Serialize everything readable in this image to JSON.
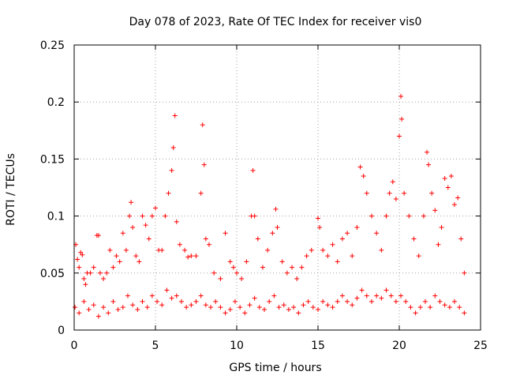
{
  "chart_data": {
    "type": "scatter",
    "title": "Day 078 of 2023, Rate Of TEC Index for receiver vis0",
    "xlabel": "GPS time / hours",
    "ylabel": "ROTI / TECUs",
    "xlim": [
      0,
      25
    ],
    "ylim": [
      0,
      0.25
    ],
    "xticks": [
      0,
      5,
      10,
      15,
      20,
      25
    ],
    "yticks": [
      0,
      0.05,
      0.1,
      0.15,
      0.2,
      0.25
    ],
    "xtick_labels": [
      "0",
      "5",
      "10",
      "15",
      "20",
      "25"
    ],
    "ytick_labels": [
      "0",
      "0.05",
      "0.1",
      "0.15",
      "0.2",
      "0.25"
    ],
    "grid": true,
    "marker": "plus",
    "series_color": "#ff0000",
    "series": [
      {
        "x": [
          0.1,
          0.2,
          0.3,
          0.4,
          0.5,
          0.6,
          0.7,
          0.8,
          1.0,
          1.2,
          1.4,
          1.5,
          1.6,
          1.8,
          2.0,
          2.2,
          2.4,
          2.6,
          2.8,
          3.0,
          3.2,
          3.4,
          3.5,
          3.6,
          3.8,
          4.0,
          4.2,
          4.4,
          4.6,
          4.8,
          5.0,
          5.2,
          5.4,
          5.6,
          5.8,
          6.0,
          6.1,
          6.2,
          6.3,
          6.5,
          6.8,
          7.0,
          7.2,
          7.5,
          7.8,
          7.9,
          8.0,
          8.1,
          8.3,
          8.6,
          9.0,
          9.3,
          9.6,
          9.8,
          10.0,
          10.3,
          10.6,
          10.9,
          11.0,
          11.1,
          11.3,
          11.6,
          11.9,
          12.2,
          12.4,
          12.5,
          12.8,
          13.1,
          13.4,
          13.7,
          14.0,
          14.3,
          14.6,
          15.0,
          15.1,
          15.3,
          15.6,
          15.9,
          16.2,
          16.5,
          16.8,
          17.1,
          17.4,
          17.6,
          17.8,
          18.0,
          18.3,
          18.6,
          18.9,
          19.2,
          19.4,
          19.6,
          19.8,
          20.0,
          20.1,
          20.15,
          20.3,
          20.6,
          20.9,
          21.2,
          21.5,
          21.7,
          21.8,
          22.0,
          22.2,
          22.4,
          22.6,
          22.8,
          23.0,
          23.2,
          23.4,
          23.6,
          23.8,
          24.0
        ],
        "y": [
          0.075,
          0.062,
          0.055,
          0.068,
          0.066,
          0.045,
          0.04,
          0.05,
          0.05,
          0.055,
          0.083,
          0.083,
          0.05,
          0.045,
          0.05,
          0.07,
          0.055,
          0.065,
          0.06,
          0.085,
          0.07,
          0.1,
          0.112,
          0.09,
          0.065,
          0.06,
          0.1,
          0.092,
          0.08,
          0.1,
          0.107,
          0.07,
          0.07,
          0.1,
          0.12,
          0.14,
          0.16,
          0.188,
          0.095,
          0.075,
          0.07,
          0.064,
          0.065,
          0.065,
          0.12,
          0.18,
          0.145,
          0.08,
          0.075,
          0.05,
          0.045,
          0.085,
          0.06,
          0.055,
          0.05,
          0.045,
          0.06,
          0.1,
          0.14,
          0.1,
          0.08,
          0.055,
          0.07,
          0.085,
          0.106,
          0.09,
          0.06,
          0.05,
          0.055,
          0.045,
          0.055,
          0.065,
          0.07,
          0.098,
          0.09,
          0.07,
          0.065,
          0.075,
          0.06,
          0.08,
          0.085,
          0.065,
          0.09,
          0.143,
          0.135,
          0.12,
          0.1,
          0.085,
          0.07,
          0.1,
          0.12,
          0.13,
          0.115,
          0.17,
          0.205,
          0.185,
          0.12,
          0.1,
          0.08,
          0.065,
          0.1,
          0.156,
          0.145,
          0.12,
          0.105,
          0.075,
          0.09,
          0.133,
          0.125,
          0.135,
          0.11,
          0.116,
          0.08,
          0.05
        ]
      },
      {
        "x": [
          0.05,
          0.3,
          0.6,
          0.9,
          1.2,
          1.5,
          1.8,
          2.1,
          2.4,
          2.7,
          3.0,
          3.3,
          3.6,
          3.9,
          4.2,
          4.5,
          4.8,
          5.1,
          5.4,
          5.7,
          6.0,
          6.3,
          6.6,
          6.9,
          7.2,
          7.5,
          7.8,
          8.1,
          8.4,
          8.7,
          9.0,
          9.3,
          9.6,
          9.9,
          10.2,
          10.5,
          10.8,
          11.1,
          11.4,
          11.7,
          12.0,
          12.3,
          12.6,
          12.9,
          13.2,
          13.5,
          13.8,
          14.1,
          14.4,
          14.7,
          15.0,
          15.3,
          15.6,
          15.9,
          16.2,
          16.5,
          16.8,
          17.1,
          17.4,
          17.7,
          18.0,
          18.3,
          18.6,
          18.9,
          19.2,
          19.5,
          19.8,
          20.1,
          20.4,
          20.7,
          21.0,
          21.3,
          21.6,
          21.9,
          22.2,
          22.5,
          22.8,
          23.1,
          23.4,
          23.7,
          24.0
        ],
        "y": [
          0.02,
          0.015,
          0.025,
          0.018,
          0.022,
          0.012,
          0.02,
          0.015,
          0.025,
          0.018,
          0.02,
          0.03,
          0.022,
          0.018,
          0.025,
          0.02,
          0.03,
          0.025,
          0.022,
          0.035,
          0.028,
          0.03,
          0.025,
          0.02,
          0.022,
          0.025,
          0.03,
          0.022,
          0.02,
          0.025,
          0.02,
          0.015,
          0.018,
          0.025,
          0.02,
          0.015,
          0.022,
          0.028,
          0.02,
          0.018,
          0.025,
          0.03,
          0.02,
          0.022,
          0.018,
          0.02,
          0.015,
          0.022,
          0.025,
          0.02,
          0.018,
          0.025,
          0.022,
          0.02,
          0.025,
          0.03,
          0.025,
          0.022,
          0.028,
          0.035,
          0.03,
          0.025,
          0.03,
          0.028,
          0.035,
          0.03,
          0.025,
          0.03,
          0.025,
          0.02,
          0.015,
          0.02,
          0.025,
          0.02,
          0.03,
          0.025,
          0.022,
          0.02,
          0.025,
          0.02,
          0.015
        ]
      }
    ]
  }
}
